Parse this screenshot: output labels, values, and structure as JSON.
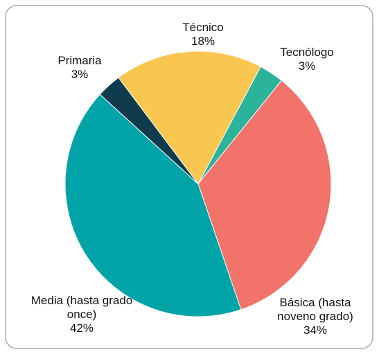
{
  "chart_data": {
    "type": "pie",
    "categories": [
      "Tecnólogo",
      "Básica (hasta noveno grado)",
      "Media (hasta grado once)",
      "Primaria",
      "Técnico"
    ],
    "values": [
      3,
      34,
      42,
      3,
      18
    ],
    "value_labels": [
      "3%",
      "34%",
      "42%",
      "3%",
      "18%"
    ],
    "colors": [
      "#2bb39b",
      "#f2736a",
      "#00a3a8",
      "#0f3b4c",
      "#f9c64f"
    ]
  }
}
